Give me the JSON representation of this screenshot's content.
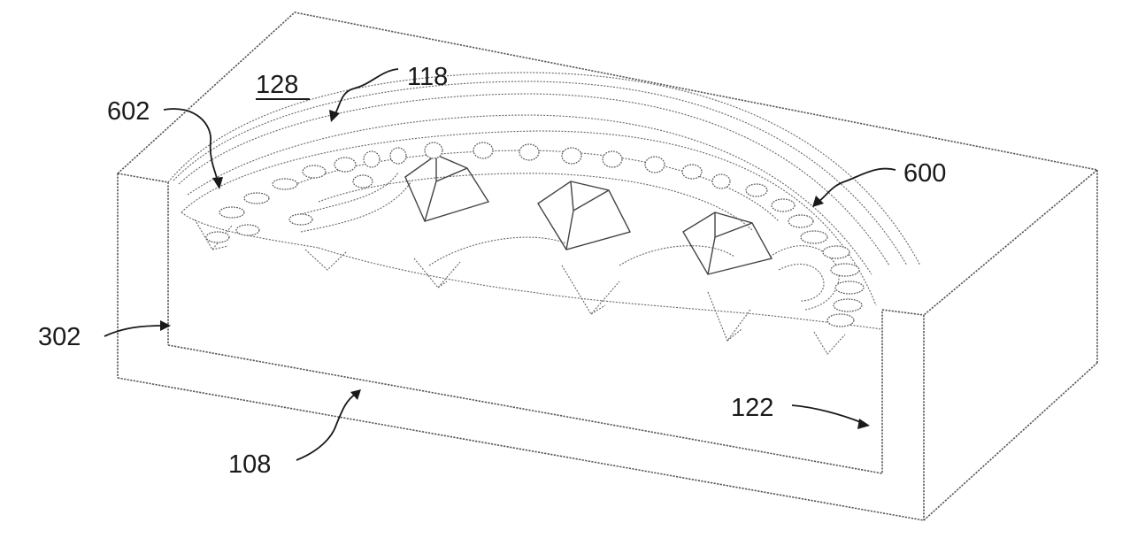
{
  "figure": {
    "reference_numerals": {
      "n128": "128",
      "n118": "118",
      "n602": "602",
      "n600": "600",
      "n302": "302",
      "n122": "122",
      "n108": "108"
    },
    "underlined_numeral": "128"
  },
  "colors": {
    "line": "#555555",
    "text": "#1a1a1a",
    "background": "#ffffff"
  }
}
